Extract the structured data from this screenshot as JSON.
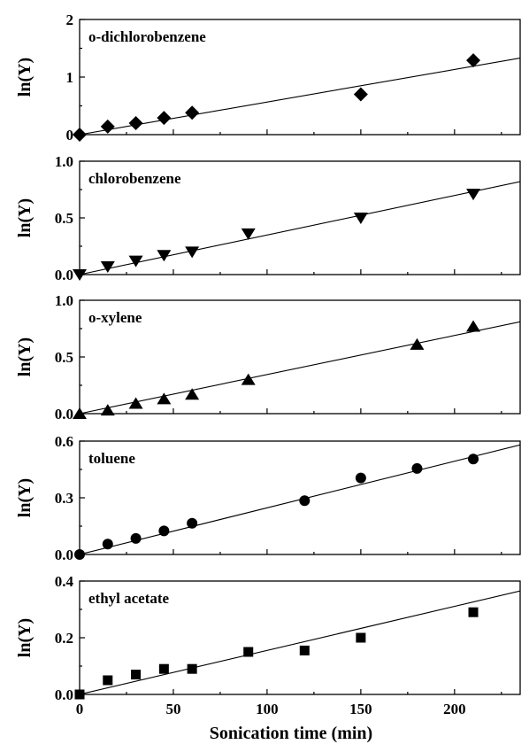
{
  "chart_data": [
    {
      "type": "scatter",
      "title": "o-dichlorobenzene",
      "ylabel": "ln(Y)",
      "xlim": [
        0,
        235
      ],
      "ylim": [
        0,
        2
      ],
      "yticks": [
        0,
        1,
        2
      ],
      "ytick_labels": [
        "0",
        "1",
        "2"
      ],
      "marker": "diamond",
      "x": [
        0,
        15,
        30,
        45,
        60,
        150,
        210
      ],
      "y": [
        0.0,
        0.14,
        0.2,
        0.29,
        0.38,
        0.7,
        1.29
      ],
      "fit": {
        "x": [
          0,
          235
        ],
        "y": [
          0,
          1.33
        ]
      }
    },
    {
      "type": "scatter",
      "title": "chlorobenzene",
      "ylabel": "ln(Y)",
      "xlim": [
        0,
        235
      ],
      "ylim": [
        0,
        1.0
      ],
      "yticks": [
        0,
        0.5,
        1.0
      ],
      "ytick_labels": [
        "0.0",
        "0.5",
        "1.0"
      ],
      "marker": "triangle-down",
      "x": [
        0,
        15,
        30,
        45,
        60,
        90,
        150,
        210
      ],
      "y": [
        0.0,
        0.07,
        0.12,
        0.17,
        0.2,
        0.36,
        0.5,
        0.71
      ],
      "fit": {
        "x": [
          0,
          235
        ],
        "y": [
          0,
          0.82
        ]
      }
    },
    {
      "type": "scatter",
      "title": "o-xylene",
      "ylabel": "ln(Y)",
      "xlim": [
        0,
        235
      ],
      "ylim": [
        0,
        1.0
      ],
      "yticks": [
        0,
        0.5,
        1.0
      ],
      "ytick_labels": [
        "0.0",
        "0.5",
        "1.0"
      ],
      "marker": "triangle-up",
      "x": [
        0,
        15,
        30,
        45,
        60,
        90,
        180,
        210
      ],
      "y": [
        0.0,
        0.03,
        0.09,
        0.13,
        0.17,
        0.3,
        0.61,
        0.77
      ],
      "fit": {
        "x": [
          0,
          235
        ],
        "y": [
          0,
          0.81
        ]
      }
    },
    {
      "type": "scatter",
      "title": "toluene",
      "ylabel": "ln(Y)",
      "xlim": [
        0,
        235
      ],
      "ylim": [
        0,
        0.6
      ],
      "yticks": [
        0,
        0.3,
        0.6
      ],
      "ytick_labels": [
        "0.0",
        "0.3",
        "0.6"
      ],
      "marker": "circle",
      "x": [
        0,
        15,
        30,
        45,
        60,
        120,
        150,
        180,
        210
      ],
      "y": [
        0.0,
        0.055,
        0.085,
        0.125,
        0.165,
        0.285,
        0.405,
        0.455,
        0.505
      ],
      "fit": {
        "x": [
          0,
          235
        ],
        "y": [
          0,
          0.58
        ]
      }
    },
    {
      "type": "scatter",
      "title": "ethyl acetate",
      "ylabel": "ln(Y)",
      "xlabel": "Sonication time (min)",
      "xlim": [
        0,
        235
      ],
      "ylim": [
        0,
        0.4
      ],
      "yticks": [
        0,
        0.2,
        0.4
      ],
      "ytick_labels": [
        "0.0",
        "0.2",
        "0.4"
      ],
      "xticks": [
        0,
        50,
        100,
        150,
        200
      ],
      "xtick_labels": [
        "0",
        "50",
        "100",
        "150",
        "200"
      ],
      "marker": "square",
      "x": [
        0,
        15,
        30,
        45,
        60,
        90,
        120,
        150,
        210
      ],
      "y": [
        0.0,
        0.05,
        0.07,
        0.09,
        0.09,
        0.15,
        0.155,
        0.2,
        0.29
      ],
      "fit": {
        "x": [
          0,
          235
        ],
        "y": [
          0,
          0.365
        ]
      }
    }
  ]
}
